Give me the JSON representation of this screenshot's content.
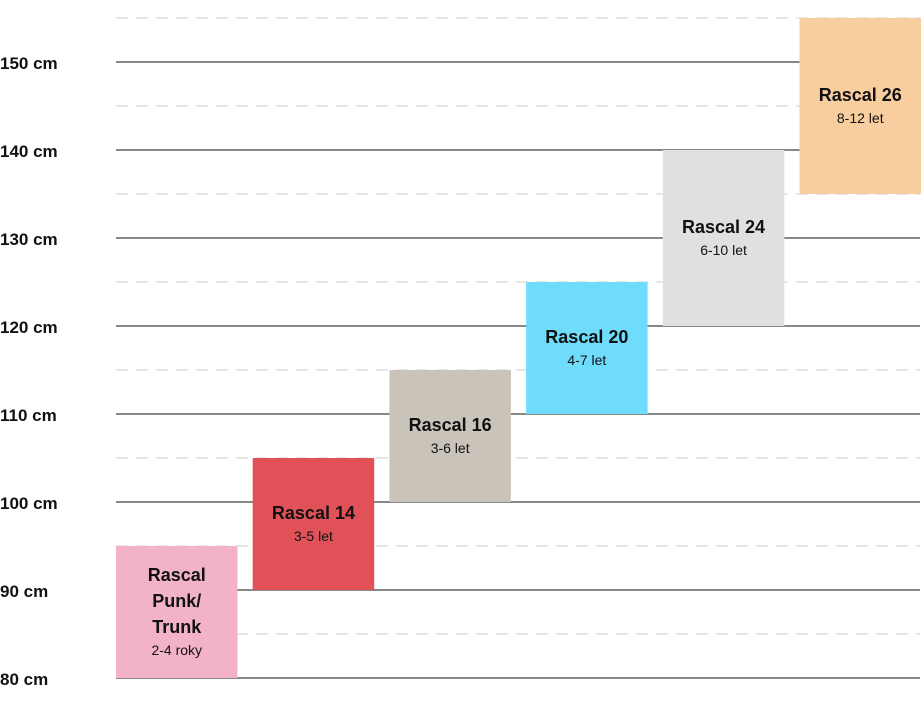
{
  "chart_data": {
    "type": "bar",
    "subtype": "floating-range",
    "title": "",
    "xlabel": "",
    "ylabel": "",
    "ylim": [
      80,
      155
    ],
    "y_ticks": [
      80,
      90,
      100,
      110,
      120,
      130,
      140,
      150
    ],
    "y_tick_labels": [
      "80 cm",
      "90 cm",
      "100 cm",
      "110 cm",
      "120 cm",
      "130 cm",
      "140 cm",
      "150 cm"
    ],
    "grid": true,
    "bars": [
      {
        "name": "Rascal Punk/ Trunk",
        "lines": [
          "Rascal",
          "Punk/",
          "Trunk"
        ],
        "age": "2-4 roky",
        "min": 80,
        "max": 95,
        "color": "#f2b3c8"
      },
      {
        "name": "Rascal 14",
        "lines": [
          "Rascal 14"
        ],
        "age": "3-5 let",
        "min": 90,
        "max": 105,
        "color": "#e05257"
      },
      {
        "name": "Rascal 16",
        "lines": [
          "Rascal 16"
        ],
        "age": "3-6 let",
        "min": 100,
        "max": 115,
        "color": "#c9c3ba"
      },
      {
        "name": "Rascal 20",
        "lines": [
          "Rascal 20"
        ],
        "age": "4-7 let",
        "min": 110,
        "max": 125,
        "color": "#6fdcfb"
      },
      {
        "name": "Rascal 24",
        "lines": [
          "Rascal 24"
        ],
        "age": "6-10 let",
        "min": 120,
        "max": 140,
        "color": "#e0e0e0"
      },
      {
        "name": "Rascal 26",
        "lines": [
          "Rascal 26"
        ],
        "age": "8-12 let",
        "min": 135,
        "max": 155,
        "color": "#f8ce9f"
      }
    ]
  }
}
